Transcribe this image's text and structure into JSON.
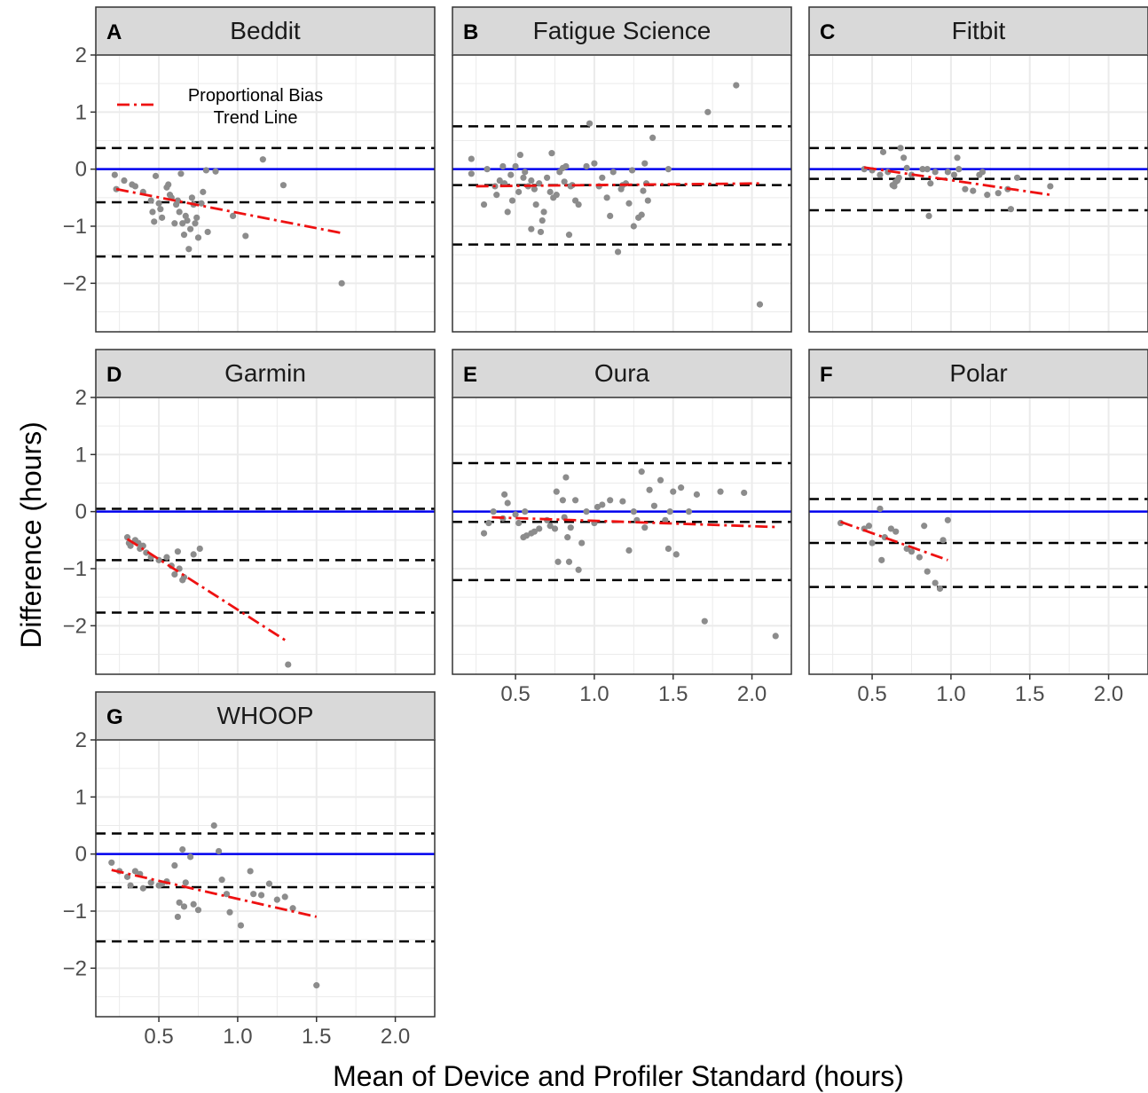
{
  "figure": {
    "ylabel": "Difference (hours)",
    "xlabel": "Mean of Device and Profiler Standard (hours)",
    "legend": {
      "label_line1": "Proportional Bias",
      "label_line2": "Trend Line",
      "placement": "top-left inside panel A"
    }
  },
  "colors": {
    "points": "#8c8c8c",
    "zero_line": "#0000ee",
    "limit_lines": "#000000",
    "trend_line": "#ee1111",
    "strip_fill": "#d9d9d9",
    "grid": "#ebebeb"
  },
  "axis": {
    "x_ticks": [
      "0.5",
      "1.0",
      "1.5",
      "2.0"
    ],
    "y_ticks": [
      "2",
      "1",
      "0",
      "−1",
      "−2"
    ]
  },
  "chart_data": [
    {
      "type": "scatter",
      "letter": "A",
      "title": "Beddit",
      "xlim": [
        0.1,
        2.25
      ],
      "ylim": [
        -2.85,
        2.0
      ],
      "loa_upper": 0.37,
      "bias": -0.58,
      "loa_lower": -1.53,
      "trend": {
        "x1": 0.23,
        "y1": -0.35,
        "x2": 1.66,
        "y2": -1.12
      },
      "points": [
        [
          0.22,
          -0.1
        ],
        [
          0.23,
          -0.35
        ],
        [
          0.28,
          -0.2
        ],
        [
          0.33,
          -0.27
        ],
        [
          0.35,
          -0.3
        ],
        [
          0.4,
          -0.4
        ],
        [
          0.45,
          -0.55
        ],
        [
          0.46,
          -0.75
        ],
        [
          0.47,
          -0.92
        ],
        [
          0.48,
          -0.12
        ],
        [
          0.5,
          -0.6
        ],
        [
          0.51,
          -0.7
        ],
        [
          0.52,
          -0.85
        ],
        [
          0.55,
          -0.32
        ],
        [
          0.56,
          -0.27
        ],
        [
          0.57,
          -0.45
        ],
        [
          0.58,
          -0.5
        ],
        [
          0.6,
          -0.95
        ],
        [
          0.61,
          -0.62
        ],
        [
          0.62,
          -0.55
        ],
        [
          0.63,
          -0.75
        ],
        [
          0.64,
          -0.08
        ],
        [
          0.65,
          -0.95
        ],
        [
          0.66,
          -1.15
        ],
        [
          0.67,
          -0.82
        ],
        [
          0.68,
          -0.9
        ],
        [
          0.69,
          -1.4
        ],
        [
          0.7,
          -1.05
        ],
        [
          0.71,
          -0.5
        ],
        [
          0.72,
          -0.62
        ],
        [
          0.73,
          -0.95
        ],
        [
          0.74,
          -0.85
        ],
        [
          0.75,
          -1.2
        ],
        [
          0.77,
          -0.6
        ],
        [
          0.78,
          -0.4
        ],
        [
          0.8,
          -0.02
        ],
        [
          0.81,
          -1.1
        ],
        [
          0.86,
          -0.04
        ],
        [
          0.97,
          -0.82
        ],
        [
          1.05,
          -1.17
        ],
        [
          1.16,
          0.17
        ],
        [
          1.29,
          -0.28
        ],
        [
          1.66,
          -2.0
        ]
      ]
    },
    {
      "type": "scatter",
      "letter": "B",
      "title": "Fatigue Science",
      "xlim": [
        0.1,
        2.25
      ],
      "ylim": [
        -2.85,
        2.0
      ],
      "loa_upper": 0.75,
      "bias": -0.28,
      "loa_lower": -1.32,
      "trend": {
        "x1": 0.25,
        "y1": -0.3,
        "x2": 2.05,
        "y2": -0.25
      },
      "points": [
        [
          0.22,
          0.18
        ],
        [
          0.22,
          -0.08
        ],
        [
          0.3,
          -0.62
        ],
        [
          0.32,
          0.0
        ],
        [
          0.37,
          -0.3
        ],
        [
          0.38,
          -0.45
        ],
        [
          0.4,
          -0.2
        ],
        [
          0.42,
          0.05
        ],
        [
          0.43,
          -0.25
        ],
        [
          0.45,
          -0.75
        ],
        [
          0.47,
          -0.1
        ],
        [
          0.48,
          -0.55
        ],
        [
          0.5,
          0.05
        ],
        [
          0.52,
          -0.4
        ],
        [
          0.53,
          0.25
        ],
        [
          0.55,
          -0.15
        ],
        [
          0.56,
          -0.05
        ],
        [
          0.58,
          -0.3
        ],
        [
          0.6,
          -0.2
        ],
        [
          0.6,
          -1.05
        ],
        [
          0.62,
          -0.35
        ],
        [
          0.63,
          -0.62
        ],
        [
          0.65,
          -0.25
        ],
        [
          0.66,
          -1.1
        ],
        [
          0.67,
          -0.9
        ],
        [
          0.68,
          -0.75
        ],
        [
          0.7,
          -0.15
        ],
        [
          0.72,
          -0.4
        ],
        [
          0.73,
          0.28
        ],
        [
          0.74,
          -0.5
        ],
        [
          0.76,
          -0.45
        ],
        [
          0.78,
          -0.05
        ],
        [
          0.8,
          0.02
        ],
        [
          0.81,
          -0.22
        ],
        [
          0.82,
          0.05
        ],
        [
          0.84,
          -1.15
        ],
        [
          0.85,
          -0.3
        ],
        [
          0.86,
          -0.28
        ],
        [
          0.88,
          -0.55
        ],
        [
          0.9,
          -0.62
        ],
        [
          0.95,
          0.05
        ],
        [
          0.97,
          0.8
        ],
        [
          1.0,
          0.1
        ],
        [
          1.03,
          -0.3
        ],
        [
          1.05,
          -0.15
        ],
        [
          1.08,
          -0.5
        ],
        [
          1.1,
          -0.82
        ],
        [
          1.12,
          -0.05
        ],
        [
          1.15,
          -1.45
        ],
        [
          1.17,
          -0.35
        ],
        [
          1.18,
          -0.28
        ],
        [
          1.2,
          -0.25
        ],
        [
          1.22,
          -0.6
        ],
        [
          1.24,
          -0.02
        ],
        [
          1.25,
          -1.0
        ],
        [
          1.28,
          -0.85
        ],
        [
          1.3,
          -0.8
        ],
        [
          1.31,
          -0.38
        ],
        [
          1.32,
          0.1
        ],
        [
          1.33,
          -0.25
        ],
        [
          1.34,
          -0.55
        ],
        [
          1.37,
          0.55
        ],
        [
          1.47,
          0.0
        ],
        [
          1.72,
          1.0
        ],
        [
          1.9,
          1.47
        ],
        [
          2.05,
          -2.37
        ]
      ]
    },
    {
      "type": "scatter",
      "letter": "C",
      "title": "Fitbit",
      "xlim": [
        0.1,
        2.25
      ],
      "ylim": [
        -2.85,
        2.0
      ],
      "loa_upper": 0.37,
      "bias": -0.17,
      "loa_lower": -0.72,
      "trend": {
        "x1": 0.45,
        "y1": 0.03,
        "x2": 1.63,
        "y2": -0.45
      },
      "points": [
        [
          0.45,
          0.0
        ],
        [
          0.5,
          -0.02
        ],
        [
          0.55,
          -0.1
        ],
        [
          0.57,
          0.3
        ],
        [
          0.6,
          -0.05
        ],
        [
          0.63,
          -0.28
        ],
        [
          0.64,
          -0.3
        ],
        [
          0.65,
          -0.22
        ],
        [
          0.66,
          -0.2
        ],
        [
          0.67,
          -0.15
        ],
        [
          0.68,
          0.37
        ],
        [
          0.7,
          0.2
        ],
        [
          0.72,
          0.02
        ],
        [
          0.75,
          -0.1
        ],
        [
          0.82,
          0.0
        ],
        [
          0.85,
          0.0
        ],
        [
          0.86,
          -0.82
        ],
        [
          0.87,
          -0.25
        ],
        [
          0.9,
          -0.05
        ],
        [
          0.98,
          -0.05
        ],
        [
          1.02,
          -0.1
        ],
        [
          1.04,
          0.2
        ],
        [
          1.05,
          0.0
        ],
        [
          1.09,
          -0.35
        ],
        [
          1.14,
          -0.38
        ],
        [
          1.18,
          -0.1
        ],
        [
          1.2,
          -0.05
        ],
        [
          1.23,
          -0.45
        ],
        [
          1.3,
          -0.42
        ],
        [
          1.36,
          -0.35
        ],
        [
          1.38,
          -0.7
        ],
        [
          1.42,
          -0.15
        ],
        [
          1.63,
          -0.3
        ]
      ]
    },
    {
      "type": "scatter",
      "letter": "D",
      "title": "Garmin",
      "xlim": [
        0.1,
        2.25
      ],
      "ylim": [
        -2.85,
        2.0
      ],
      "loa_upper": 0.05,
      "bias": -0.85,
      "loa_lower": -1.77,
      "trend": {
        "x1": 0.3,
        "y1": -0.48,
        "x2": 1.3,
        "y2": -2.25
      },
      "points": [
        [
          0.3,
          -0.45
        ],
        [
          0.31,
          -0.55
        ],
        [
          0.32,
          -0.6
        ],
        [
          0.35,
          -0.5
        ],
        [
          0.37,
          -0.55
        ],
        [
          0.38,
          -0.65
        ],
        [
          0.4,
          -0.6
        ],
        [
          0.42,
          -0.72
        ],
        [
          0.45,
          -0.8
        ],
        [
          0.5,
          -0.85
        ],
        [
          0.55,
          -0.8
        ],
        [
          0.58,
          -0.95
        ],
        [
          0.6,
          -1.1
        ],
        [
          0.62,
          -0.7
        ],
        [
          0.63,
          -1.0
        ],
        [
          0.65,
          -1.2
        ],
        [
          0.66,
          -1.15
        ],
        [
          0.72,
          -0.75
        ],
        [
          0.76,
          -0.65
        ],
        [
          1.32,
          -2.68
        ]
      ]
    },
    {
      "type": "scatter",
      "letter": "E",
      "title": "Oura",
      "xlim": [
        0.1,
        2.25
      ],
      "ylim": [
        -2.85,
        2.0
      ],
      "loa_upper": 0.85,
      "bias": -0.18,
      "loa_lower": -1.2,
      "trend": {
        "x1": 0.35,
        "y1": -0.1,
        "x2": 2.15,
        "y2": -0.27
      },
      "points": [
        [
          0.3,
          -0.38
        ],
        [
          0.33,
          -0.2
        ],
        [
          0.36,
          0.0
        ],
        [
          0.42,
          -0.12
        ],
        [
          0.43,
          0.3
        ],
        [
          0.45,
          0.15
        ],
        [
          0.5,
          -0.05
        ],
        [
          0.52,
          -0.2
        ],
        [
          0.55,
          -0.45
        ],
        [
          0.56,
          0.0
        ],
        [
          0.57,
          -0.42
        ],
        [
          0.6,
          -0.38
        ],
        [
          0.62,
          -0.35
        ],
        [
          0.65,
          -0.3
        ],
        [
          0.7,
          -0.15
        ],
        [
          0.72,
          -0.25
        ],
        [
          0.75,
          -0.3
        ],
        [
          0.76,
          0.35
        ],
        [
          0.77,
          -0.88
        ],
        [
          0.8,
          0.2
        ],
        [
          0.81,
          -0.1
        ],
        [
          0.82,
          0.6
        ],
        [
          0.83,
          -0.45
        ],
        [
          0.84,
          -0.88
        ],
        [
          0.85,
          -0.28
        ],
        [
          0.88,
          0.2
        ],
        [
          0.9,
          -1.02
        ],
        [
          0.92,
          -0.55
        ],
        [
          0.95,
          0.0
        ],
        [
          1.0,
          -0.2
        ],
        [
          1.02,
          0.08
        ],
        [
          1.05,
          0.12
        ],
        [
          1.1,
          0.2
        ],
        [
          1.18,
          0.18
        ],
        [
          1.22,
          -0.68
        ],
        [
          1.25,
          0.0
        ],
        [
          1.27,
          -0.15
        ],
        [
          1.3,
          0.7
        ],
        [
          1.32,
          -0.28
        ],
        [
          1.35,
          0.38
        ],
        [
          1.38,
          0.1
        ],
        [
          1.42,
          0.55
        ],
        [
          1.45,
          -0.15
        ],
        [
          1.47,
          -0.65
        ],
        [
          1.48,
          0.0
        ],
        [
          1.5,
          0.35
        ],
        [
          1.52,
          -0.75
        ],
        [
          1.55,
          0.42
        ],
        [
          1.6,
          0.0
        ],
        [
          1.65,
          0.3
        ],
        [
          1.7,
          -1.92
        ],
        [
          1.8,
          0.35
        ],
        [
          1.95,
          0.33
        ],
        [
          2.15,
          -2.18
        ]
      ]
    },
    {
      "type": "scatter",
      "letter": "F",
      "title": "Polar",
      "xlim": [
        0.1,
        2.25
      ],
      "ylim": [
        -2.85,
        2.0
      ],
      "loa_upper": 0.22,
      "bias": -0.55,
      "loa_lower": -1.32,
      "trend": {
        "x1": 0.3,
        "y1": -0.18,
        "x2": 0.98,
        "y2": -0.85
      },
      "points": [
        [
          0.3,
          -0.2
        ],
        [
          0.45,
          -0.3
        ],
        [
          0.48,
          -0.25
        ],
        [
          0.5,
          -0.55
        ],
        [
          0.55,
          0.05
        ],
        [
          0.56,
          -0.85
        ],
        [
          0.58,
          -0.45
        ],
        [
          0.62,
          -0.3
        ],
        [
          0.65,
          -0.35
        ],
        [
          0.72,
          -0.65
        ],
        [
          0.75,
          -0.7
        ],
        [
          0.8,
          -0.8
        ],
        [
          0.83,
          -0.25
        ],
        [
          0.85,
          -1.05
        ],
        [
          0.9,
          -1.25
        ],
        [
          0.93,
          -1.35
        ],
        [
          0.95,
          -0.5
        ],
        [
          0.98,
          -0.15
        ]
      ]
    },
    {
      "type": "scatter",
      "letter": "G",
      "title": "WHOOP",
      "xlim": [
        0.1,
        2.25
      ],
      "ylim": [
        -2.85,
        2.0
      ],
      "loa_upper": 0.36,
      "bias": -0.58,
      "loa_lower": -1.53,
      "trend": {
        "x1": 0.2,
        "y1": -0.28,
        "x2": 1.5,
        "y2": -1.1
      },
      "points": [
        [
          0.2,
          -0.15
        ],
        [
          0.25,
          -0.3
        ],
        [
          0.3,
          -0.4
        ],
        [
          0.32,
          -0.55
        ],
        [
          0.35,
          -0.3
        ],
        [
          0.38,
          -0.35
        ],
        [
          0.4,
          -0.6
        ],
        [
          0.45,
          -0.5
        ],
        [
          0.5,
          -0.55
        ],
        [
          0.52,
          -0.52
        ],
        [
          0.55,
          -0.48
        ],
        [
          0.6,
          -0.2
        ],
        [
          0.62,
          -1.1
        ],
        [
          0.63,
          -0.85
        ],
        [
          0.65,
          0.08
        ],
        [
          0.66,
          -0.92
        ],
        [
          0.67,
          -0.5
        ],
        [
          0.7,
          -0.05
        ],
        [
          0.72,
          -0.88
        ],
        [
          0.75,
          -0.98
        ],
        [
          0.85,
          0.5
        ],
        [
          0.88,
          0.05
        ],
        [
          0.9,
          -0.45
        ],
        [
          0.93,
          -0.7
        ],
        [
          0.95,
          -1.02
        ],
        [
          1.02,
          -1.25
        ],
        [
          1.08,
          -0.3
        ],
        [
          1.1,
          -0.7
        ],
        [
          1.15,
          -0.72
        ],
        [
          1.2,
          -0.52
        ],
        [
          1.25,
          -0.8
        ],
        [
          1.3,
          -0.75
        ],
        [
          1.35,
          -0.95
        ],
        [
          1.5,
          -2.3
        ]
      ]
    }
  ]
}
